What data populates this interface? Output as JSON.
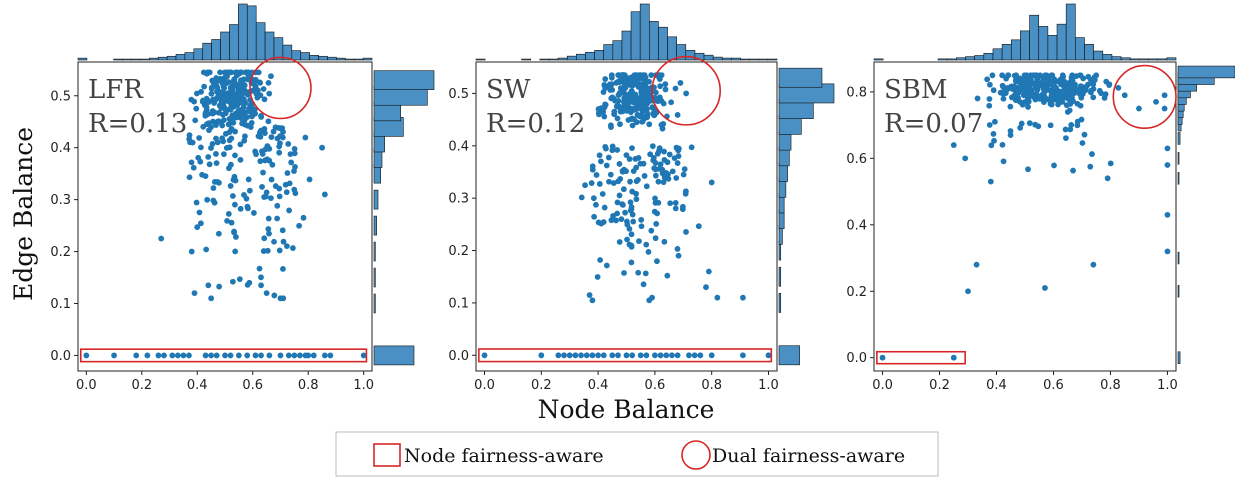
{
  "xlabel": "Node Balance",
  "ylabel": "Edge Balance",
  "legend": [
    {
      "label": "Node fairness-aware",
      "marker": "rectangle",
      "color": "#d62728"
    },
    {
      "label": "Dual fairness-aware",
      "marker": "circle",
      "color": "#d62728"
    }
  ],
  "colors": {
    "points": "#1f77b4",
    "bars": "#4a90c4",
    "bar_edge": "#111111",
    "highlight": "#d62728"
  },
  "chart_data": [
    {
      "type": "scatter",
      "name": "LFR",
      "annotation": "R=0.13",
      "xlim": [
        -0.03,
        1.03
      ],
      "ylim": [
        -0.03,
        0.565
      ],
      "xticks": [
        0.0,
        0.2,
        0.4,
        0.6,
        0.8,
        1.0
      ],
      "yticks": [
        0.0,
        0.1,
        0.2,
        0.3,
        0.4,
        0.5
      ],
      "zero_points_x": [
        0.0,
        0.1,
        0.18,
        0.22,
        0.26,
        0.28,
        0.31,
        0.33,
        0.35,
        0.37,
        0.43,
        0.45,
        0.47,
        0.5,
        0.52,
        0.55,
        0.58,
        0.61,
        0.63,
        0.66,
        0.7,
        0.73,
        0.75,
        0.77,
        0.79,
        0.8,
        0.82,
        0.86,
        0.88,
        1.0
      ],
      "dense_cluster": {
        "x_range": [
          0.37,
          0.68
        ],
        "y_range": [
          0.38,
          0.545
        ],
        "count": 260
      },
      "spread": {
        "x_range": [
          0.28,
          0.86
        ],
        "y_range": [
          0.11,
          0.44
        ],
        "count": 150
      },
      "outliers": [
        [
          0.27,
          0.225
        ],
        [
          0.38,
          0.2
        ],
        [
          0.44,
          0.135
        ],
        [
          0.45,
          0.11
        ],
        [
          0.39,
          0.12
        ],
        [
          0.63,
          0.135
        ],
        [
          0.65,
          0.12
        ],
        [
          0.7,
          0.11
        ],
        [
          0.71,
          0.11
        ],
        [
          0.86,
          0.31
        ],
        [
          0.85,
          0.4
        ]
      ],
      "node_fair_box": {
        "x": [
          -0.02,
          1.01
        ],
        "y": [
          -0.012,
          0.012
        ]
      },
      "dual_fair_circle": {
        "cx": 0.7,
        "cy": 0.515,
        "r_x": 0.11,
        "r_y": 0.06
      },
      "x_hist": [
        2,
        0,
        0,
        0,
        1,
        1,
        1,
        1,
        2,
        3,
        4,
        6,
        8,
        12,
        18,
        22,
        30,
        38,
        60,
        58,
        40,
        30,
        24,
        16,
        10,
        8,
        5,
        4,
        3,
        2,
        1,
        1,
        2
      ],
      "y_hist": [
        {
          "y": 0.0,
          "n": 30
        },
        {
          "y": 0.1,
          "n": 1
        },
        {
          "y": 0.15,
          "n": 1
        },
        {
          "y": 0.2,
          "n": 1
        },
        {
          "y": 0.25,
          "n": 2
        },
        {
          "y": 0.3,
          "n": 3
        },
        {
          "y": 0.35,
          "n": 5
        },
        {
          "y": 0.38,
          "n": 6
        },
        {
          "y": 0.41,
          "n": 8
        },
        {
          "y": 0.44,
          "n": 22
        },
        {
          "y": 0.47,
          "n": 20
        },
        {
          "y": 0.5,
          "n": 40
        },
        {
          "y": 0.53,
          "n": 45
        }
      ]
    },
    {
      "type": "scatter",
      "name": "SW",
      "annotation": "R=0.12",
      "xlim": [
        -0.03,
        1.03
      ],
      "ylim": [
        -0.03,
        0.56
      ],
      "xticks": [
        0.0,
        0.2,
        0.4,
        0.6,
        0.8,
        1.0
      ],
      "yticks": [
        0.0,
        0.1,
        0.2,
        0.3,
        0.4,
        0.5
      ],
      "zero_points_x": [
        0.0,
        0.2,
        0.26,
        0.28,
        0.3,
        0.32,
        0.34,
        0.36,
        0.38,
        0.4,
        0.42,
        0.45,
        0.47,
        0.5,
        0.52,
        0.55,
        0.57,
        0.6,
        0.62,
        0.64,
        0.66,
        0.68,
        0.72,
        0.74,
        0.76,
        0.8,
        0.91,
        1.0
      ],
      "dense_cluster": {
        "x_range": [
          0.38,
          0.68
        ],
        "y_range": [
          0.4,
          0.535
        ],
        "count": 260
      },
      "spread": {
        "x_range": [
          0.3,
          0.8
        ],
        "y_range": [
          0.12,
          0.4
        ],
        "count": 150
      },
      "outliers": [
        [
          0.37,
          0.115
        ],
        [
          0.38,
          0.105
        ],
        [
          0.58,
          0.105
        ],
        [
          0.59,
          0.11
        ],
        [
          0.78,
          0.13
        ],
        [
          0.79,
          0.16
        ],
        [
          0.82,
          0.11
        ],
        [
          0.91,
          0.11
        ],
        [
          0.8,
          0.33
        ],
        [
          0.71,
          0.5
        ],
        [
          0.69,
          0.52
        ]
      ],
      "node_fair_box": {
        "x": [
          -0.02,
          1.01
        ],
        "y": [
          -0.012,
          0.012
        ]
      },
      "dual_fair_circle": {
        "cx": 0.71,
        "cy": 0.505,
        "r_x": 0.12,
        "r_y": 0.065
      },
      "x_hist": [
        1,
        0,
        0,
        0,
        0,
        1,
        0,
        1,
        1,
        2,
        4,
        6,
        8,
        10,
        16,
        20,
        30,
        50,
        58,
        40,
        34,
        24,
        16,
        10,
        7,
        5,
        3,
        2,
        2,
        1,
        1,
        1,
        1
      ],
      "y_hist": [
        {
          "y": 0.0,
          "n": 12
        },
        {
          "y": 0.1,
          "n": 1
        },
        {
          "y": 0.15,
          "n": 1
        },
        {
          "y": 0.2,
          "n": 1
        },
        {
          "y": 0.23,
          "n": 2
        },
        {
          "y": 0.26,
          "n": 3
        },
        {
          "y": 0.29,
          "n": 3
        },
        {
          "y": 0.32,
          "n": 4
        },
        {
          "y": 0.35,
          "n": 5
        },
        {
          "y": 0.38,
          "n": 6
        },
        {
          "y": 0.41,
          "n": 7
        },
        {
          "y": 0.44,
          "n": 13
        },
        {
          "y": 0.47,
          "n": 20
        },
        {
          "y": 0.5,
          "n": 32
        },
        {
          "y": 0.53,
          "n": 25
        }
      ]
    },
    {
      "type": "scatter",
      "name": "SBM",
      "annotation": "R=0.07",
      "xlim": [
        -0.03,
        1.03
      ],
      "ylim": [
        -0.04,
        0.89
      ],
      "xticks": [
        0.0,
        0.2,
        0.4,
        0.6,
        0.8,
        1.0
      ],
      "yticks": [
        0.0,
        0.2,
        0.4,
        0.6,
        0.8
      ],
      "zero_points_x": [
        0.0,
        0.25
      ],
      "dense_cluster": {
        "x_range": [
          0.32,
          0.83
        ],
        "y_range": [
          0.72,
          0.85
        ],
        "count": 280
      },
      "spread": {
        "x_range": [
          0.25,
          0.88
        ],
        "y_range": [
          0.53,
          0.72
        ],
        "count": 30
      },
      "outliers": [
        [
          0.3,
          0.2
        ],
        [
          0.33,
          0.28
        ],
        [
          0.57,
          0.21
        ],
        [
          0.74,
          0.28
        ],
        [
          0.25,
          0.64
        ],
        [
          0.29,
          0.6
        ],
        [
          0.38,
          0.53
        ],
        [
          0.79,
          0.54
        ],
        [
          0.85,
          0.79
        ],
        [
          0.9,
          0.75
        ],
        [
          0.96,
          0.77
        ],
        [
          0.99,
          0.79
        ],
        [
          0.99,
          0.75
        ],
        [
          1.0,
          0.63
        ],
        [
          1.0,
          0.58
        ],
        [
          1.0,
          0.43
        ],
        [
          1.0,
          0.32
        ]
      ],
      "node_fair_box": {
        "x": [
          -0.02,
          0.29
        ],
        "y": [
          -0.018,
          0.018
        ]
      },
      "dual_fair_circle": {
        "cx": 0.92,
        "cy": 0.785,
        "r_x": 0.11,
        "r_y": 0.09
      },
      "x_hist": [
        1,
        0,
        0,
        0,
        0,
        0,
        0,
        1,
        1,
        2,
        3,
        4,
        6,
        10,
        14,
        18,
        26,
        40,
        30,
        22,
        32,
        50,
        20,
        14,
        8,
        5,
        3,
        2,
        1,
        1,
        1,
        1,
        2
      ],
      "y_hist": [
        {
          "y": 0.0,
          "n": 2
        },
        {
          "y": 0.2,
          "n": 1
        },
        {
          "y": 0.3,
          "n": 1
        },
        {
          "y": 0.54,
          "n": 1
        },
        {
          "y": 0.6,
          "n": 1
        },
        {
          "y": 0.66,
          "n": 2
        },
        {
          "y": 0.7,
          "n": 3
        },
        {
          "y": 0.72,
          "n": 4
        },
        {
          "y": 0.74,
          "n": 5
        },
        {
          "y": 0.76,
          "n": 6
        },
        {
          "y": 0.78,
          "n": 8
        },
        {
          "y": 0.8,
          "n": 12
        },
        {
          "y": 0.82,
          "n": 18
        },
        {
          "y": 0.84,
          "n": 35
        },
        {
          "y": 0.86,
          "n": 55
        }
      ]
    }
  ]
}
